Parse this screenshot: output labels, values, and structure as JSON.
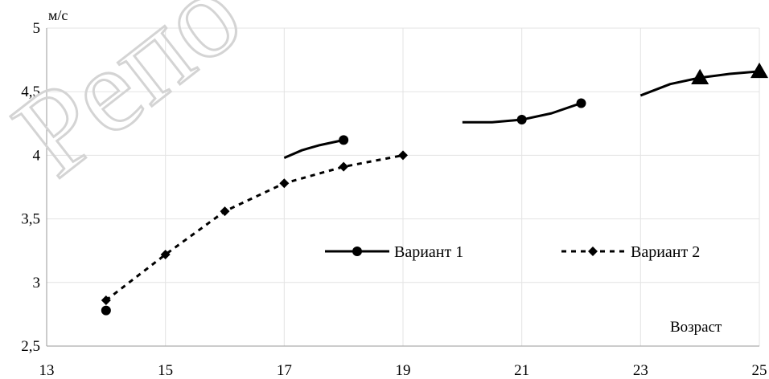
{
  "chart_data": {
    "type": "line",
    "title": "",
    "ylabel": "м/с",
    "xlabel": "Возраст",
    "xlim": [
      13,
      25
    ],
    "ylim": [
      2.5,
      5
    ],
    "x_ticks": [
      "13",
      "15",
      "17",
      "19",
      "21",
      "23",
      "25"
    ],
    "y_ticks": [
      "2,5",
      "3",
      "3,5",
      "4",
      "4,5",
      "5"
    ],
    "grid": true,
    "legend_position": "center-right",
    "series": [
      {
        "name": "Вариант 1",
        "style": "solid",
        "color": "#000000",
        "segments": [
          {
            "marker": "circle",
            "points": [
              [
                14,
                2.78
              ]
            ]
          },
          {
            "marker": "circle",
            "points": [
              [
                17,
                3.98
              ],
              [
                17.3,
                4.04
              ],
              [
                17.6,
                4.08
              ],
              [
                18,
                4.12
              ]
            ]
          },
          {
            "marker": "circle",
            "points": [
              [
                20,
                4.26
              ],
              [
                20.5,
                4.26
              ],
              [
                21,
                4.28
              ],
              [
                21.5,
                4.33
              ],
              [
                22,
                4.41
              ]
            ]
          },
          {
            "marker": "triangle",
            "points": [
              [
                23,
                4.47
              ],
              [
                23.5,
                4.56
              ],
              [
                24,
                4.61
              ],
              [
                24.5,
                4.64
              ],
              [
                25,
                4.66
              ]
            ]
          }
        ]
      },
      {
        "name": "Вариант 2",
        "style": "dashed",
        "color": "#000000",
        "segments": [
          {
            "marker": "diamond",
            "points": [
              [
                14,
                2.86
              ],
              [
                15,
                3.22
              ],
              [
                16,
                3.56
              ],
              [
                17,
                3.78
              ],
              [
                18,
                3.91
              ],
              [
                19,
                4.0
              ]
            ]
          }
        ]
      }
    ],
    "markers_shown": [
      {
        "series": "Вариант 1",
        "marker": "circle",
        "x": 14,
        "y": 2.78
      },
      {
        "series": "Вариант 1",
        "marker": "circle",
        "x": 18,
        "y": 4.12
      },
      {
        "series": "Вариант 1",
        "marker": "circle",
        "x": 21,
        "y": 4.28
      },
      {
        "series": "Вариант 1",
        "marker": "circle",
        "x": 22,
        "y": 4.41
      },
      {
        "series": "Вариант 1",
        "marker": "triangle",
        "x": 24,
        "y": 4.61
      },
      {
        "series": "Вариант 1",
        "marker": "triangle",
        "x": 25,
        "y": 4.66
      },
      {
        "series": "Вариант 2",
        "marker": "diamond",
        "x": 14,
        "y": 2.86
      },
      {
        "series": "Вариант 2",
        "marker": "diamond",
        "x": 15,
        "y": 3.22
      },
      {
        "series": "Вариант 2",
        "marker": "diamond",
        "x": 16,
        "y": 3.56
      },
      {
        "series": "Вариант 2",
        "marker": "diamond",
        "x": 17,
        "y": 3.78
      },
      {
        "series": "Вариант 2",
        "marker": "diamond",
        "x": 18,
        "y": 3.91
      },
      {
        "series": "Вариант 2",
        "marker": "diamond",
        "x": 19,
        "y": 4.0
      }
    ],
    "watermark": "Репо"
  }
}
